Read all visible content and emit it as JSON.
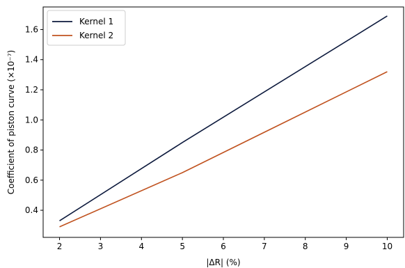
{
  "chart_data": {
    "type": "line",
    "xlabel": "|ΔR| (%)",
    "ylabel": "Coefficient of piston curve (×10⁻⁷)",
    "xlim": [
      1.6,
      10.4
    ],
    "ylim": [
      0.22,
      1.75
    ],
    "xticks": [
      2,
      3,
      4,
      5,
      6,
      7,
      8,
      9,
      10
    ],
    "yticks": [
      0.4,
      0.6,
      0.8,
      1.0,
      1.2,
      1.4,
      1.6
    ],
    "ytick_labels": [
      "0.4",
      "0.6",
      "0.8",
      "1.0",
      "1.2",
      "1.4",
      "1.6"
    ],
    "grid": false,
    "legend_position": "top-left",
    "series": [
      {
        "name": "Kernel 1",
        "color": "#0d1a3d",
        "x": [
          2,
          5,
          10
        ],
        "y": [
          0.33,
          0.85,
          1.69
        ]
      },
      {
        "name": "Kernel 2",
        "color": "#c0521f",
        "x": [
          2,
          5,
          10
        ],
        "y": [
          0.29,
          0.65,
          1.32
        ]
      }
    ]
  }
}
